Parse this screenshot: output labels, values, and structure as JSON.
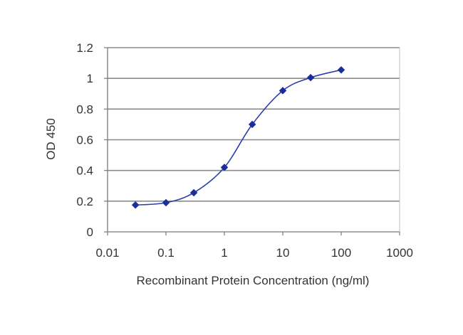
{
  "chart_data": {
    "type": "scatter",
    "xlabel": "Recombinant Protein Concentration (ng/ml)",
    "ylabel": "OD 450",
    "xscale": "log",
    "xlim": [
      0.01,
      1000
    ],
    "ylim": [
      0,
      1.2
    ],
    "x_ticks": [
      0.01,
      0.1,
      1,
      10,
      100,
      1000
    ],
    "x_tick_labels": [
      "0.01",
      "0.1",
      "1",
      "10",
      "100",
      "1000"
    ],
    "y_ticks": [
      0,
      0.2,
      0.4,
      0.6,
      0.8,
      1,
      1.2
    ],
    "y_tick_labels": [
      "0",
      "0.2",
      "0.4",
      "0.6",
      "0.8",
      "1",
      "1.2"
    ],
    "grid": "horizontal",
    "legend": "none",
    "series": [
      {
        "x": [
          0.03,
          0.1,
          0.3,
          1,
          3,
          10,
          30,
          100
        ],
        "y": [
          0.175,
          0.19,
          0.255,
          0.42,
          0.7,
          0.92,
          1.005,
          1.055
        ],
        "fit": "sigmoidal"
      }
    ],
    "colors": {
      "series": "#1a2f9a",
      "grid": "#8a8a8a",
      "axis": "#7a7a7a"
    }
  }
}
